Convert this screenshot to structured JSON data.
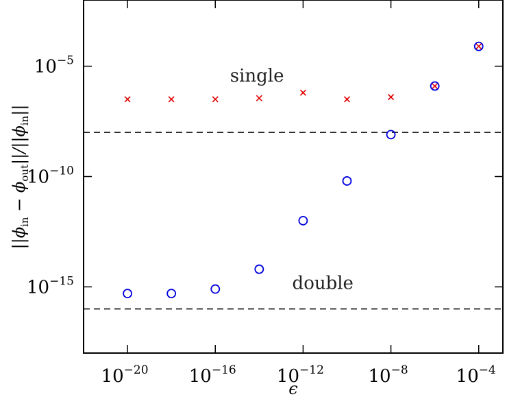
{
  "chart_data": {
    "type": "scatter",
    "xlabel": "ϵ",
    "ylabel": "||ϕin − ϕout||/||ϕin||",
    "x_scale": "log",
    "y_scale": "log",
    "xlim_log10": [
      -22,
      -2.9
    ],
    "ylim_log10": [
      -18,
      -2
    ],
    "x_ticks": [
      {
        "base": "10",
        "exp": "−20",
        "log10": -20
      },
      {
        "base": "10",
        "exp": "−16",
        "log10": -16
      },
      {
        "base": "10",
        "exp": "−12",
        "log10": -12
      },
      {
        "base": "10",
        "exp": "−8",
        "log10": -8
      },
      {
        "base": "10",
        "exp": "−4",
        "log10": -4
      }
    ],
    "y_ticks": [
      {
        "base": "10",
        "exp": "−5",
        "log10": -5
      },
      {
        "base": "10",
        "exp": "−10",
        "log10": -10
      },
      {
        "base": "10",
        "exp": "−15",
        "log10": -15
      }
    ],
    "series": [
      {
        "marker": "cross",
        "color": "#e00000",
        "x_log10": [
          -20,
          -18,
          -16,
          -14,
          -12,
          -10,
          -8,
          -6,
          -4
        ],
        "y_log10": [
          -6.5,
          -6.5,
          -6.5,
          -6.45,
          -6.2,
          -6.5,
          -6.4,
          -5.9,
          -4.1
        ]
      },
      {
        "marker": "circle",
        "color": "#0000dd",
        "x_log10": [
          -20,
          -18,
          -16,
          -14,
          -12,
          -10,
          -8,
          -6,
          -4
        ],
        "y_log10": [
          -15.3,
          -15.3,
          -15.1,
          -14.2,
          -12.0,
          -10.2,
          -8.1,
          -5.9,
          -4.1
        ]
      }
    ],
    "reference_lines_log10": [
      -8,
      -16
    ],
    "annotations": [
      {
        "text": "single",
        "x_log10": -14.1,
        "y_log10": -5.7
      },
      {
        "text": "double",
        "x_log10": -11.1,
        "y_log10": -15.1
      }
    ],
    "grid": false
  }
}
